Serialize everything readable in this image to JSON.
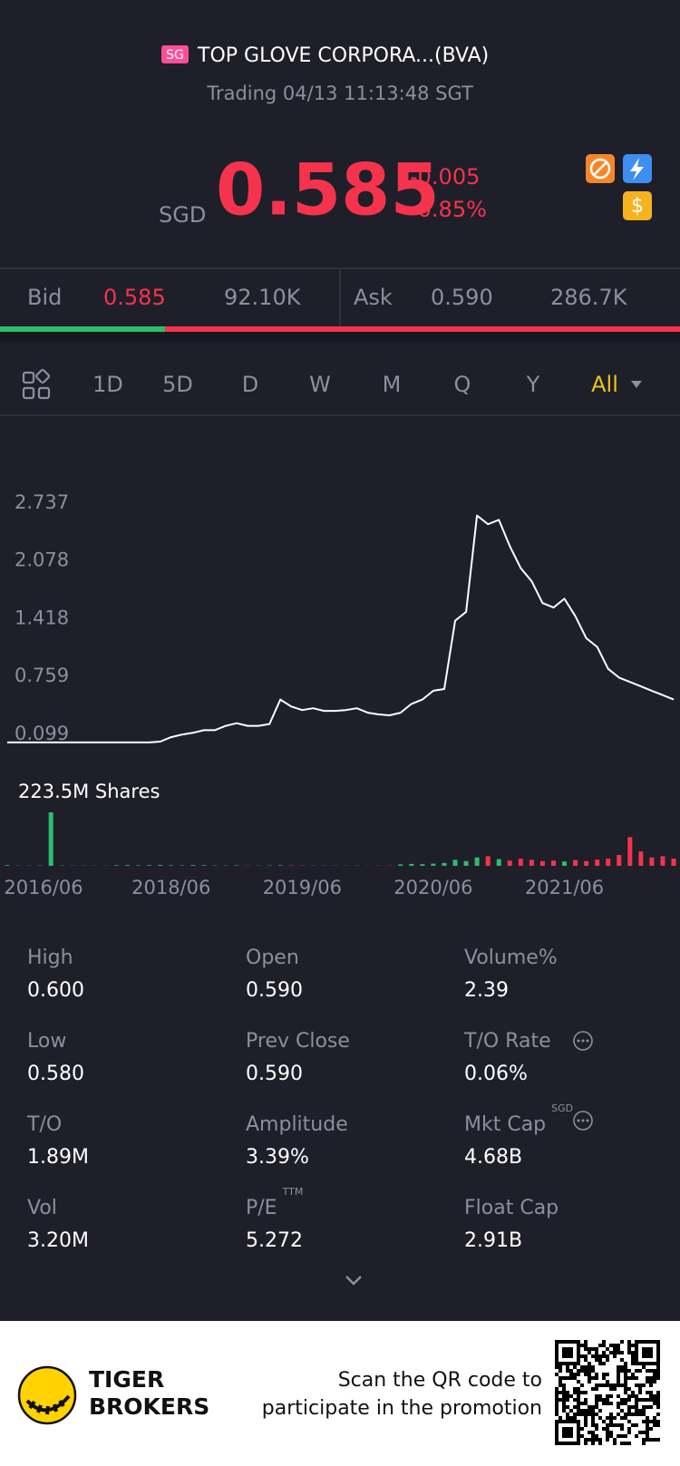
{
  "header": {
    "market_badge": "SG",
    "name": "TOP GLOVE CORPORA...(BVA)",
    "status": "Trading 04/13 11:13:48 SGT"
  },
  "quote": {
    "currency": "SGD",
    "price": "0.585",
    "change": "-0.005",
    "change_percent": "-0.85%"
  },
  "order_book": {
    "bid_label": "Bid",
    "bid_price": "0.585",
    "bid_size": "92.10K",
    "ask_label": "Ask",
    "ask_price": "0.590",
    "ask_size": "286.7K"
  },
  "tabs": [
    "1D",
    "5D",
    "D",
    "W",
    "M",
    "Q",
    "Y",
    "All"
  ],
  "active_tab": "All",
  "chart_data": {
    "type": "line",
    "color": "#ffffff",
    "x": [
      "2015/12",
      "2016/02",
      "2016/04",
      "2016/06",
      "2016/08",
      "2016/10",
      "2016/12",
      "2017/02",
      "2017/04",
      "2017/06",
      "2017/08",
      "2017/10",
      "2017/12",
      "2018/02",
      "2018/04",
      "2018/06",
      "2018/07",
      "2018/08",
      "2018/09",
      "2018/10",
      "2018/11",
      "2018/12",
      "2019/01",
      "2019/02",
      "2019/03",
      "2019/04",
      "2019/05",
      "2019/06",
      "2019/07",
      "2019/08",
      "2019/09",
      "2019/10",
      "2019/11",
      "2019/12",
      "2020/01",
      "2020/02",
      "2020/03",
      "2020/04",
      "2020/05",
      "2020/06",
      "2020/07",
      "2020/08",
      "2020/09",
      "2020/10",
      "2020/11",
      "2020/12",
      "2021/01",
      "2021/02",
      "2021/03",
      "2021/04",
      "2021/05",
      "2021/06",
      "2021/07",
      "2021/08",
      "2021/09",
      "2021/10",
      "2021/11",
      "2021/12",
      "2022/01",
      "2022/02",
      "2022/03",
      "2022/04"
    ],
    "values": [
      0.11,
      0.11,
      0.11,
      0.11,
      0.11,
      0.11,
      0.11,
      0.11,
      0.11,
      0.11,
      0.11,
      0.11,
      0.11,
      0.11,
      0.12,
      0.17,
      0.2,
      0.22,
      0.25,
      0.25,
      0.3,
      0.33,
      0.3,
      0.3,
      0.32,
      0.6,
      0.52,
      0.48,
      0.5,
      0.47,
      0.47,
      0.48,
      0.5,
      0.45,
      0.43,
      0.42,
      0.45,
      0.55,
      0.6,
      0.7,
      0.72,
      1.5,
      1.6,
      2.7,
      2.6,
      2.65,
      2.35,
      2.1,
      1.95,
      1.7,
      1.65,
      1.75,
      1.55,
      1.3,
      1.2,
      0.95,
      0.85,
      0.8,
      0.75,
      0.7,
      0.65,
      0.6
    ],
    "ylim": [
      0.099,
      2.737
    ],
    "yticks": [
      0.099,
      0.759,
      1.418,
      2.078,
      2.737
    ],
    "xticks": [
      "2016/06",
      "2018/06",
      "2019/06",
      "2020/06",
      "2021/06"
    ],
    "grid": false,
    "volume_label": "223.5M Shares",
    "volume_up_color": "#2ebd6b",
    "volume_down_color": "#f5334d",
    "volume": [
      3000000,
      1000000,
      800000,
      1500000,
      223500000,
      1200000,
      900000,
      700000,
      800000,
      600000,
      2500000,
      3000000,
      2000000,
      2800000,
      3500000,
      2200000,
      1800000,
      3000000,
      2500000,
      1500000,
      1200000,
      2000000,
      1000000,
      900000,
      1500000,
      2500000,
      1800000,
      1200000,
      1000000,
      800000,
      900000,
      700000,
      800000,
      600000,
      900000,
      1200000,
      6000000,
      8000000,
      7000000,
      9000000,
      12000000,
      25000000,
      20000000,
      35000000,
      40000000,
      28000000,
      22000000,
      30000000,
      25000000,
      20000000,
      22000000,
      18000000,
      24000000,
      20000000,
      26000000,
      30000000,
      45000000,
      120000000,
      60000000,
      35000000,
      40000000,
      30000000
    ]
  },
  "stats": [
    {
      "label": "High",
      "value": "0.600"
    },
    {
      "label": "Open",
      "value": "0.590"
    },
    {
      "label": "Volume%",
      "value": "2.39"
    },
    {
      "label": "Low",
      "value": "0.580"
    },
    {
      "label": "Prev Close",
      "value": "0.590"
    },
    {
      "label": "T/O Rate",
      "value": "0.06%"
    },
    {
      "label": "T/O",
      "value": "1.89M"
    },
    {
      "label": "Amplitude",
      "value": "3.39%"
    },
    {
      "label": "Mkt Cap",
      "superscript": "SGD",
      "value": "4.68B"
    },
    {
      "label": "Vol",
      "value": "3.20M"
    },
    {
      "label": "P/E",
      "superscript": "TTM",
      "value": "5.272"
    },
    {
      "label": "Float Cap",
      "value": "2.91B"
    }
  ],
  "footer": {
    "brand_line1": "TIGER",
    "brand_line2": "BROKERS",
    "cta_line1": "Scan the QR code to",
    "cta_line2": "participate in the promotion"
  }
}
